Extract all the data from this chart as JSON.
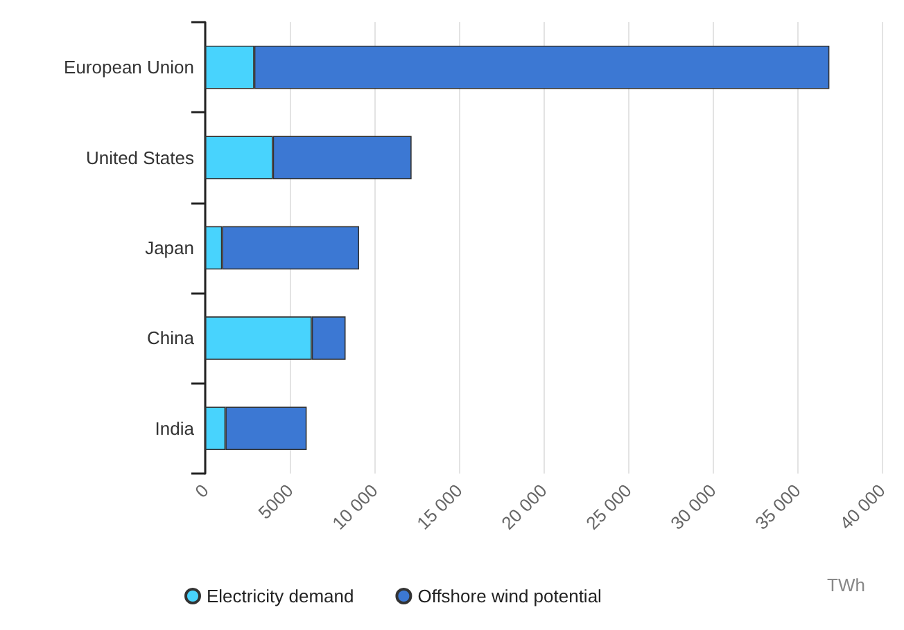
{
  "chart_data": {
    "type": "bar",
    "orientation": "horizontal",
    "stacked": true,
    "xlabel": "TWh",
    "categories": [
      "European Union",
      "United States",
      "Japan",
      "China",
      "India"
    ],
    "series": [
      {
        "name": "Electricity demand",
        "color": "#48d3fd",
        "values": [
          2900,
          4000,
          1000,
          6300,
          1200
        ]
      },
      {
        "name": "Offshore wind potential",
        "color": "#3c78d3",
        "values": [
          34000,
          8200,
          8100,
          2000,
          4800
        ]
      }
    ],
    "xlim": [
      0,
      40000
    ],
    "xticks": [
      0,
      5000,
      {
        "value": 10000,
        "label": "10 000"
      },
      {
        "value": 15000,
        "label": "15 000"
      },
      {
        "value": 20000,
        "label": "20 000"
      },
      {
        "value": 25000,
        "label": "25 000"
      },
      {
        "value": 30000,
        "label": "30 000"
      },
      {
        "value": 35000,
        "label": "35 000"
      },
      {
        "value": 40000,
        "label": "40 000"
      }
    ],
    "grid": "x",
    "legend": "bottom left"
  }
}
